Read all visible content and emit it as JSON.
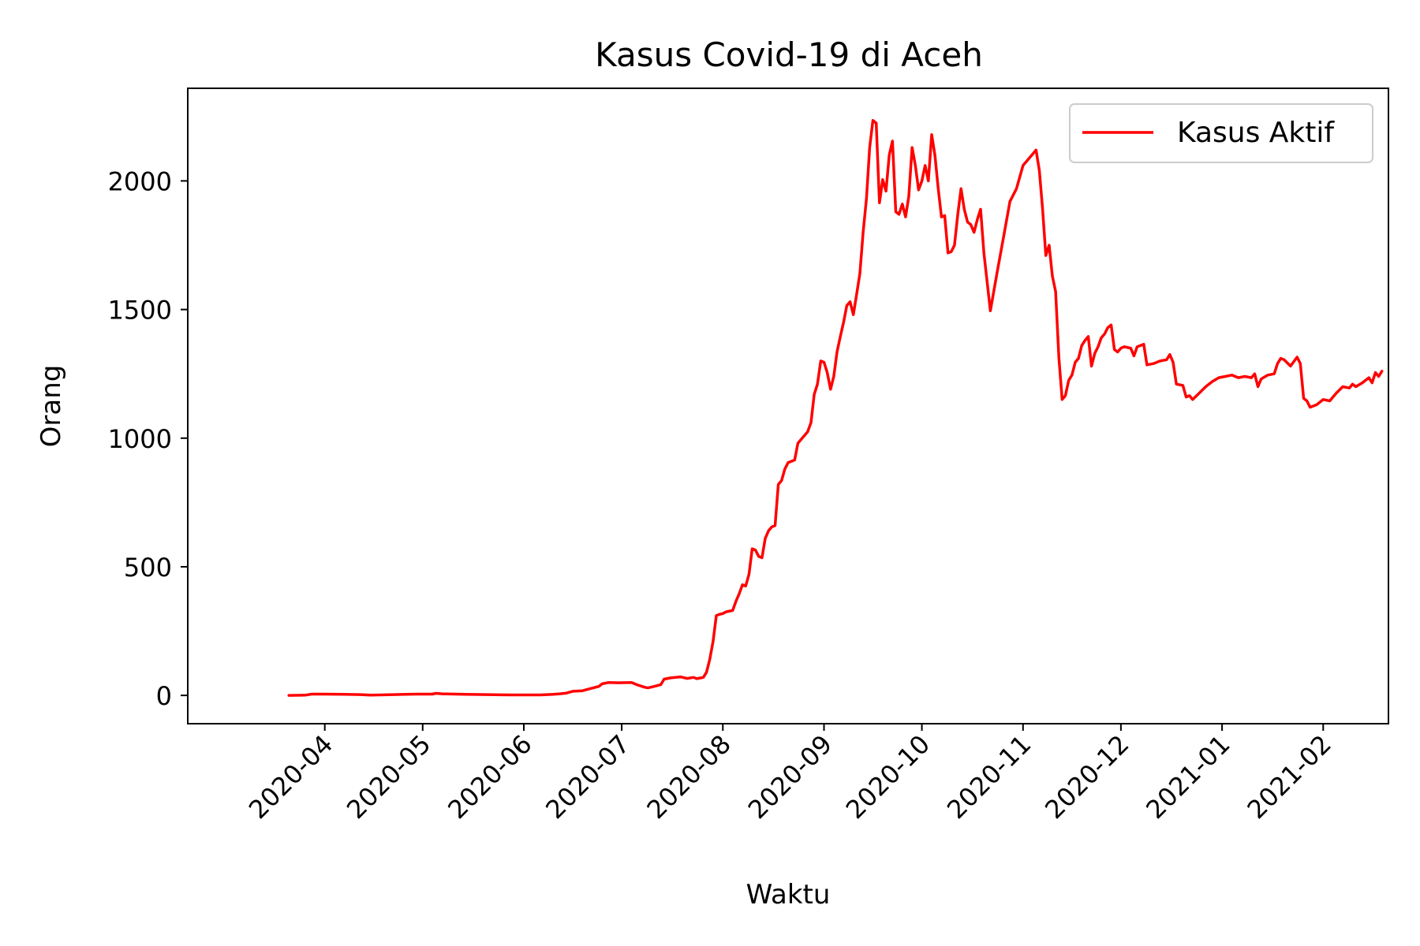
{
  "chart_data": {
    "type": "line",
    "title": "Kasus Covid-19 di Aceh",
    "xlabel": "Waktu",
    "ylabel": "Orang",
    "xlim": [
      "2020-02-19",
      "2021-02-21"
    ],
    "ylim": [
      -110,
      2360
    ],
    "xticks": [
      "2020-04",
      "2020-05",
      "2020-06",
      "2020-07",
      "2020-08",
      "2020-09",
      "2020-10",
      "2020-11",
      "2020-12",
      "2021-01",
      "2021-02"
    ],
    "xtick_dates": [
      "2020-04-01",
      "2020-05-01",
      "2020-06-01",
      "2020-07-01",
      "2020-08-01",
      "2020-09-01",
      "2020-10-01",
      "2020-11-01",
      "2020-12-01",
      "2021-01-01",
      "2021-02-01"
    ],
    "yticks": [
      0,
      500,
      1000,
      1500,
      2000
    ],
    "grid": false,
    "legend": {
      "position": "top-right",
      "entries": [
        "Kasus Aktif"
      ]
    },
    "series": [
      {
        "name": "Kasus Aktif",
        "color": "#ff0000",
        "points": [
          [
            "2020-03-21",
            0
          ],
          [
            "2020-03-26",
            1
          ],
          [
            "2020-03-28",
            5
          ],
          [
            "2020-04-01",
            5
          ],
          [
            "2020-04-07",
            4
          ],
          [
            "2020-04-12",
            3
          ],
          [
            "2020-04-15",
            1
          ],
          [
            "2020-04-22",
            3
          ],
          [
            "2020-04-29",
            5
          ],
          [
            "2020-05-04",
            5
          ],
          [
            "2020-05-05",
            8
          ],
          [
            "2020-05-07",
            6
          ],
          [
            "2020-05-14",
            4
          ],
          [
            "2020-05-21",
            3
          ],
          [
            "2020-05-28",
            2
          ],
          [
            "2020-06-06",
            2
          ],
          [
            "2020-06-10",
            4
          ],
          [
            "2020-06-12",
            6
          ],
          [
            "2020-06-14",
            9
          ],
          [
            "2020-06-16",
            16
          ],
          [
            "2020-06-19",
            18
          ],
          [
            "2020-06-21",
            25
          ],
          [
            "2020-06-24",
            35
          ],
          [
            "2020-06-25",
            45
          ],
          [
            "2020-06-27",
            50
          ],
          [
            "2020-06-30",
            49
          ],
          [
            "2020-07-04",
            50
          ],
          [
            "2020-07-06",
            40
          ],
          [
            "2020-07-08",
            32
          ],
          [
            "2020-07-09",
            29
          ],
          [
            "2020-07-11",
            35
          ],
          [
            "2020-07-13",
            42
          ],
          [
            "2020-07-14",
            63
          ],
          [
            "2020-07-16",
            68
          ],
          [
            "2020-07-19",
            72
          ],
          [
            "2020-07-21",
            66
          ],
          [
            "2020-07-23",
            70
          ],
          [
            "2020-07-24",
            65
          ],
          [
            "2020-07-26",
            70
          ],
          [
            "2020-07-27",
            90
          ],
          [
            "2020-07-28",
            140
          ],
          [
            "2020-07-29",
            210
          ],
          [
            "2020-07-30",
            310
          ],
          [
            "2020-07-31",
            315
          ],
          [
            "2020-08-01",
            318
          ],
          [
            "2020-08-02",
            325
          ],
          [
            "2020-08-04",
            330
          ],
          [
            "2020-08-05",
            365
          ],
          [
            "2020-08-06",
            395
          ],
          [
            "2020-08-07",
            430
          ],
          [
            "2020-08-08",
            425
          ],
          [
            "2020-08-09",
            470
          ],
          [
            "2020-08-10",
            570
          ],
          [
            "2020-08-11",
            565
          ],
          [
            "2020-08-12",
            540
          ],
          [
            "2020-08-13",
            535
          ],
          [
            "2020-08-14",
            610
          ],
          [
            "2020-08-15",
            640
          ],
          [
            "2020-08-16",
            655
          ],
          [
            "2020-08-17",
            660
          ],
          [
            "2020-08-18",
            820
          ],
          [
            "2020-08-19",
            835
          ],
          [
            "2020-08-20",
            880
          ],
          [
            "2020-08-21",
            905
          ],
          [
            "2020-08-22",
            910
          ],
          [
            "2020-08-23",
            915
          ],
          [
            "2020-08-24",
            980
          ],
          [
            "2020-08-25",
            995
          ],
          [
            "2020-08-26",
            1010
          ],
          [
            "2020-08-27",
            1025
          ],
          [
            "2020-08-28",
            1060
          ],
          [
            "2020-08-29",
            1170
          ],
          [
            "2020-08-30",
            1210
          ],
          [
            "2020-08-31",
            1300
          ],
          [
            "2020-09-01",
            1295
          ],
          [
            "2020-09-02",
            1255
          ],
          [
            "2020-09-03",
            1190
          ],
          [
            "2020-09-04",
            1240
          ],
          [
            "2020-09-05",
            1335
          ],
          [
            "2020-09-06",
            1395
          ],
          [
            "2020-09-07",
            1450
          ],
          [
            "2020-09-08",
            1515
          ],
          [
            "2020-09-09",
            1530
          ],
          [
            "2020-09-10",
            1480
          ],
          [
            "2020-09-11",
            1560
          ],
          [
            "2020-09-12",
            1640
          ],
          [
            "2020-09-13",
            1800
          ],
          [
            "2020-09-14",
            1930
          ],
          [
            "2020-09-15",
            2130
          ],
          [
            "2020-09-16",
            2235
          ],
          [
            "2020-09-17",
            2225
          ],
          [
            "2020-09-18",
            1915
          ],
          [
            "2020-09-19",
            2005
          ],
          [
            "2020-09-20",
            1960
          ],
          [
            "2020-09-21",
            2100
          ],
          [
            "2020-09-22",
            2155
          ],
          [
            "2020-09-23",
            1880
          ],
          [
            "2020-09-24",
            1870
          ],
          [
            "2020-09-25",
            1910
          ],
          [
            "2020-09-26",
            1860
          ],
          [
            "2020-09-27",
            1940
          ],
          [
            "2020-09-28",
            2130
          ],
          [
            "2020-09-29",
            2060
          ],
          [
            "2020-09-30",
            1965
          ],
          [
            "2020-10-01",
            2000
          ],
          [
            "2020-10-02",
            2060
          ],
          [
            "2020-10-03",
            2000
          ],
          [
            "2020-10-04",
            2180
          ],
          [
            "2020-10-05",
            2100
          ],
          [
            "2020-10-06",
            1970
          ],
          [
            "2020-10-07",
            1860
          ],
          [
            "2020-10-08",
            1865
          ],
          [
            "2020-10-09",
            1720
          ],
          [
            "2020-10-10",
            1725
          ],
          [
            "2020-10-11",
            1750
          ],
          [
            "2020-10-12",
            1870
          ],
          [
            "2020-10-13",
            1970
          ],
          [
            "2020-10-14",
            1890
          ],
          [
            "2020-10-15",
            1840
          ],
          [
            "2020-10-16",
            1830
          ],
          [
            "2020-10-17",
            1800
          ],
          [
            "2020-10-18",
            1850
          ],
          [
            "2020-10-19",
            1890
          ],
          [
            "2020-10-20",
            1720
          ],
          [
            "2020-10-22",
            1495
          ],
          [
            "2020-10-24",
            1640
          ],
          [
            "2020-10-26",
            1780
          ],
          [
            "2020-10-28",
            1920
          ],
          [
            "2020-10-30",
            1970
          ],
          [
            "2020-11-01",
            2060
          ],
          [
            "2020-11-03",
            2090
          ],
          [
            "2020-11-04",
            2105
          ],
          [
            "2020-11-05",
            2120
          ],
          [
            "2020-11-06",
            2040
          ],
          [
            "2020-11-07",
            1890
          ],
          [
            "2020-11-08",
            1710
          ],
          [
            "2020-11-09",
            1750
          ],
          [
            "2020-11-10",
            1630
          ],
          [
            "2020-11-11",
            1570
          ],
          [
            "2020-11-12",
            1310
          ],
          [
            "2020-11-13",
            1150
          ],
          [
            "2020-11-14",
            1165
          ],
          [
            "2020-11-15",
            1225
          ],
          [
            "2020-11-16",
            1245
          ],
          [
            "2020-11-17",
            1295
          ],
          [
            "2020-11-18",
            1310
          ],
          [
            "2020-11-19",
            1360
          ],
          [
            "2020-11-20",
            1380
          ],
          [
            "2020-11-21",
            1395
          ],
          [
            "2020-11-22",
            1280
          ],
          [
            "2020-11-23",
            1330
          ],
          [
            "2020-11-24",
            1355
          ],
          [
            "2020-11-25",
            1390
          ],
          [
            "2020-11-26",
            1405
          ],
          [
            "2020-11-27",
            1430
          ],
          [
            "2020-11-28",
            1440
          ],
          [
            "2020-11-29",
            1345
          ],
          [
            "2020-11-30",
            1335
          ],
          [
            "2020-12-01",
            1350
          ],
          [
            "2020-12-02",
            1355
          ],
          [
            "2020-12-04",
            1350
          ],
          [
            "2020-12-05",
            1320
          ],
          [
            "2020-12-06",
            1355
          ],
          [
            "2020-12-07",
            1360
          ],
          [
            "2020-12-08",
            1365
          ],
          [
            "2020-12-09",
            1285
          ],
          [
            "2020-12-11",
            1290
          ],
          [
            "2020-12-13",
            1300
          ],
          [
            "2020-12-15",
            1305
          ],
          [
            "2020-12-16",
            1325
          ],
          [
            "2020-12-17",
            1295
          ],
          [
            "2020-12-18",
            1210
          ],
          [
            "2020-12-20",
            1205
          ],
          [
            "2020-12-21",
            1160
          ],
          [
            "2020-12-22",
            1165
          ],
          [
            "2020-12-23",
            1150
          ],
          [
            "2020-12-25",
            1175
          ],
          [
            "2020-12-27",
            1200
          ],
          [
            "2020-12-29",
            1220
          ],
          [
            "2020-12-31",
            1235
          ],
          [
            "2021-01-02",
            1240
          ],
          [
            "2021-01-04",
            1245
          ],
          [
            "2021-01-06",
            1235
          ],
          [
            "2021-01-08",
            1240
          ],
          [
            "2021-01-10",
            1235
          ],
          [
            "2021-01-11",
            1250
          ],
          [
            "2021-01-12",
            1200
          ],
          [
            "2021-01-13",
            1230
          ],
          [
            "2021-01-15",
            1245
          ],
          [
            "2021-01-17",
            1250
          ],
          [
            "2021-01-18",
            1290
          ],
          [
            "2021-01-19",
            1310
          ],
          [
            "2021-01-20",
            1305
          ],
          [
            "2021-01-22",
            1280
          ],
          [
            "2021-01-24",
            1315
          ],
          [
            "2021-01-25",
            1290
          ],
          [
            "2021-01-26",
            1155
          ],
          [
            "2021-01-27",
            1145
          ],
          [
            "2021-01-28",
            1120
          ],
          [
            "2021-01-30",
            1130
          ],
          [
            "2021-02-01",
            1150
          ],
          [
            "2021-02-03",
            1145
          ],
          [
            "2021-02-05",
            1175
          ],
          [
            "2021-02-07",
            1200
          ],
          [
            "2021-02-09",
            1195
          ],
          [
            "2021-02-10",
            1210
          ],
          [
            "2021-02-11",
            1200
          ],
          [
            "2021-02-13",
            1215
          ],
          [
            "2021-02-15",
            1235
          ],
          [
            "2021-02-16",
            1215
          ],
          [
            "2021-02-17",
            1255
          ],
          [
            "2021-02-18",
            1240
          ],
          [
            "2021-02-19",
            1260
          ]
        ]
      }
    ]
  }
}
